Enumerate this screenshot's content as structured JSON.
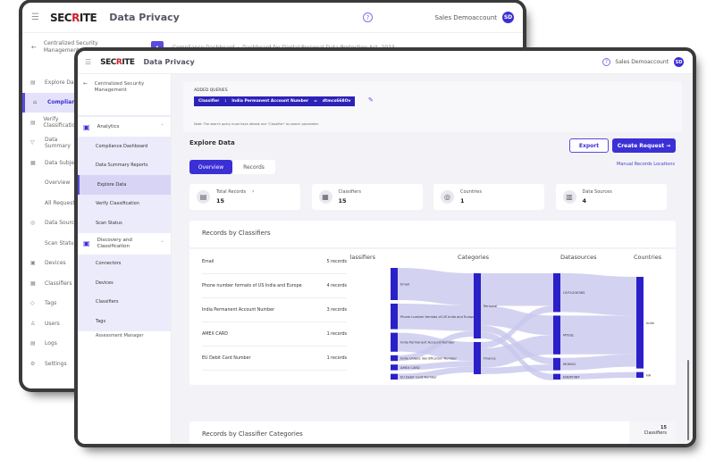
{
  "brand": {
    "logo": "SECRITE",
    "app": "Data Privacy",
    "user": "Sales Demoaccount",
    "initials": "SD",
    "accent": "#3b2fd6",
    "sankey_node": "#2a20c8",
    "flow": "#c9c7ee"
  },
  "back": {
    "back_link": "Centralized Security Management",
    "breadcrumb": [
      "Compliance Dashboard",
      "Dashboard for Digital Personal Data Protection Act, 2023"
    ],
    "nav": [
      {
        "label": "Explore Data",
        "icon": "file-icon"
      },
      {
        "label": "Compliance",
        "icon": "home-icon",
        "active": true
      },
      {
        "label": "Verify Classification",
        "icon": "file-check-icon"
      },
      {
        "label": "Data Summary",
        "icon": "filter-icon"
      },
      {
        "label": "Data Subject",
        "icon": "table-icon"
      },
      {
        "label": "Overview",
        "sub": true
      },
      {
        "label": "All Requests",
        "sub": true
      },
      {
        "label": "Data Sources",
        "icon": "database-icon"
      },
      {
        "label": "Scan Status",
        "sub": true
      },
      {
        "label": "Devices",
        "icon": "devices-icon"
      },
      {
        "label": "Classifiers",
        "icon": "classifier-icon"
      },
      {
        "label": "Tags",
        "icon": "tag-icon"
      },
      {
        "label": "Users",
        "icon": "user-icon"
      },
      {
        "label": "Logs",
        "icon": "log-icon"
      },
      {
        "label": "Settings",
        "icon": "settings-icon"
      }
    ]
  },
  "front": {
    "back_link": "Centralized Security Management",
    "nav": {
      "analytics": "Analytics",
      "analytics_items": [
        "Compliance Dashboard",
        "Data Summary Reports",
        "Explore Data",
        "Verify Classification",
        "Scan Status"
      ],
      "active": "Explore Data",
      "discovery": "Discovery and Classification",
      "discovery_items": [
        "Connectors",
        "Devices",
        "Classifiers",
        "Tags"
      ],
      "next": "Assessment Manager"
    },
    "queries": {
      "title": "ADDED QUERIES",
      "field": "Classifier",
      "op1": ":",
      "value": "India Permanent Account Number",
      "op2": "=",
      "source": "dtmcs668Ov",
      "note": "Note: The search query must have atleast one \"Classifier\" as search parameter."
    },
    "explore": {
      "title": "Explore Data",
      "export": "Export",
      "create": "Create Request →",
      "manual": "Manual Records Locations",
      "tabs": [
        "Overview",
        "Records"
      ]
    },
    "stats": [
      {
        "label": "Total Records",
        "value": "15",
        "icon": "records-icon"
      },
      {
        "label": "Classifiers",
        "value": "15",
        "icon": "classifier-icon"
      },
      {
        "label": "Countries",
        "value": "1",
        "icon": "globe-icon"
      },
      {
        "label": "Data Sources",
        "value": "4",
        "icon": "database-icon"
      }
    ],
    "records_by_classifiers": {
      "title": "Records by Classifiers",
      "rows": [
        {
          "name": "Email",
          "count": "5 records"
        },
        {
          "name": "Phone number formats of US India and Europe",
          "count": "4 records"
        },
        {
          "name": "India Permanent Account Number",
          "count": "3 records"
        },
        {
          "name": "AMEX CARD",
          "count": "1 records"
        },
        {
          "name": "EU Debit Card Number",
          "count": "1 records"
        }
      ]
    },
    "bottom": {
      "title": "Records by Classifier Categories",
      "count": "15",
      "count_label": "Classifiers"
    }
  },
  "chart_data": {
    "type": "sankey",
    "columns": [
      "Classifiers",
      "Categories",
      "Datasources",
      "Countries"
    ],
    "nodes": [
      {
        "id": "Email",
        "col": 0,
        "value": 5
      },
      {
        "id": "Phone number formats of US India and Europe",
        "col": 0,
        "value": 4
      },
      {
        "id": "India Permanent Account Number",
        "col": 0,
        "value": 3
      },
      {
        "id": "India Unique Identification Number",
        "col": 0,
        "value": 1
      },
      {
        "id": "AMEX CARD",
        "col": 0,
        "value": 1
      },
      {
        "id": "EU Debit Card Number",
        "col": 0,
        "value": 1
      },
      {
        "id": "Personal",
        "col": 1,
        "value": 10
      },
      {
        "id": "Finance",
        "col": 1,
        "value": 5
      },
      {
        "id": "OUTLOOK365",
        "col": 2,
        "value": 6
      },
      {
        "id": "MYSQL",
        "col": 2,
        "value": 6
      },
      {
        "id": "MONGO",
        "col": 2,
        "value": 2
      },
      {
        "id": "ENDPOINT",
        "col": 2,
        "value": 1
      },
      {
        "id": "India",
        "col": 3,
        "value": 14
      },
      {
        "id": "NA",
        "col": 3,
        "value": 1
      }
    ],
    "links": [
      [
        "Email",
        "Personal",
        5
      ],
      [
        "Phone number formats of US India and Europe",
        "Personal",
        4
      ],
      [
        "India Permanent Account Number",
        "Finance",
        3
      ],
      [
        "India Unique Identification Number",
        "Personal",
        1
      ],
      [
        "AMEX CARD",
        "Finance",
        1
      ],
      [
        "EU Debit Card Number",
        "Finance",
        1
      ],
      [
        "Personal",
        "OUTLOOK365",
        5
      ],
      [
        "Personal",
        "MYSQL",
        3
      ],
      [
        "Personal",
        "MONGO",
        1
      ],
      [
        "Personal",
        "ENDPOINT",
        1
      ],
      [
        "Finance",
        "OUTLOOK365",
        1
      ],
      [
        "Finance",
        "MYSQL",
        3
      ],
      [
        "Finance",
        "MONGO",
        1
      ],
      [
        "OUTLOOK365",
        "India",
        6
      ],
      [
        "MYSQL",
        "India",
        6
      ],
      [
        "MONGO",
        "India",
        2
      ],
      [
        "ENDPOINT",
        "NA",
        1
      ]
    ]
  }
}
